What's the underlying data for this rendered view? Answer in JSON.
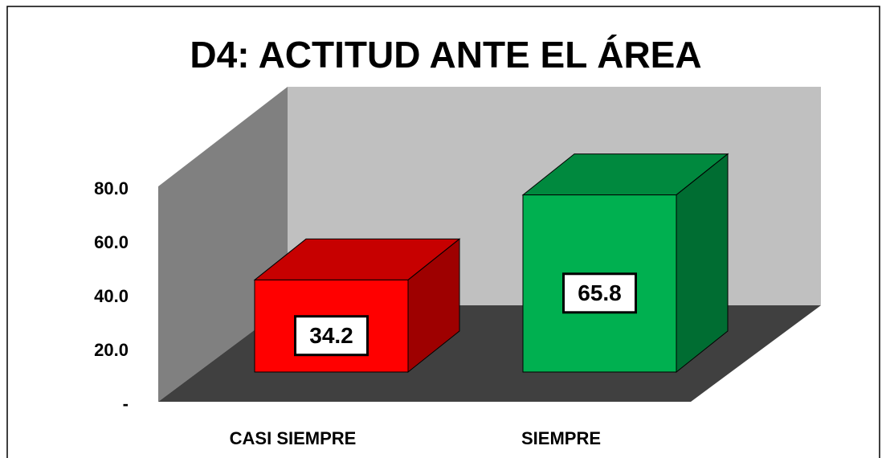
{
  "chart_data": {
    "type": "bar3d",
    "title": "D4: ACTITUD ANTE EL ÁREA",
    "categories": [
      "CASI SIEMPRE",
      "SIEMPRE"
    ],
    "values": [
      34.2,
      65.8
    ],
    "colors": [
      "#ff0000",
      "#00b050"
    ],
    "ylim": [
      0,
      80
    ],
    "yticks": [
      {
        "value": 0,
        "label": "-"
      },
      {
        "value": 20,
        "label": "20.0"
      },
      {
        "value": 40,
        "label": "40.0"
      },
      {
        "value": 60,
        "label": "60.0"
      },
      {
        "value": 80,
        "label": "80.0"
      }
    ]
  }
}
